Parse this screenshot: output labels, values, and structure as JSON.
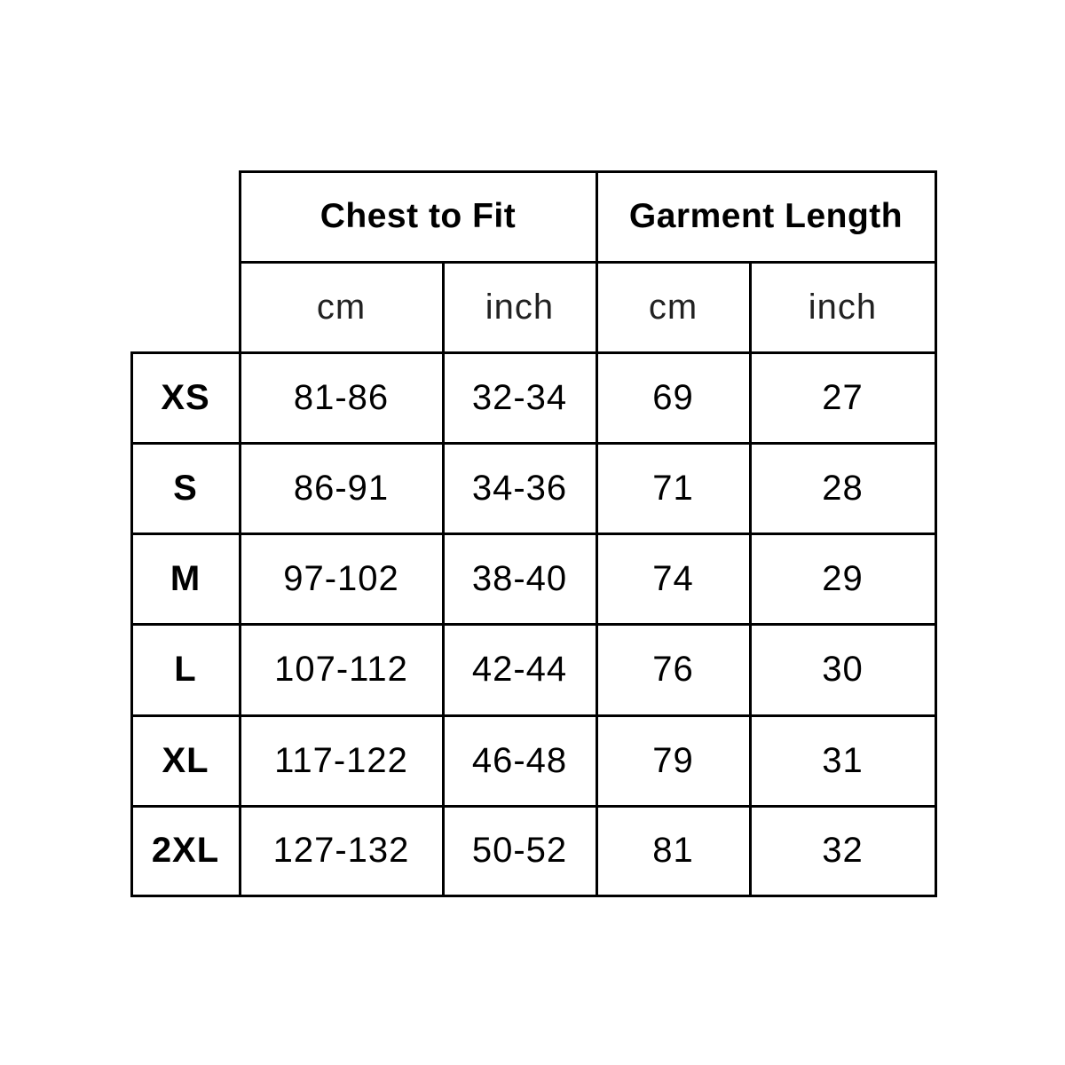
{
  "headers": {
    "chest": "Chest to Fit",
    "length": "Garment Length"
  },
  "units": [
    "cm",
    "inch",
    "cm",
    "inch"
  ],
  "rows": [
    {
      "size": "XS",
      "chest_cm": "81-86",
      "chest_in": "32-34",
      "length_cm": "69",
      "length_in": "27"
    },
    {
      "size": "S",
      "chest_cm": "86-91",
      "chest_in": "34-36",
      "length_cm": "71",
      "length_in": "28"
    },
    {
      "size": "M",
      "chest_cm": "97-102",
      "chest_in": "38-40",
      "length_cm": "74",
      "length_in": "29"
    },
    {
      "size": "L",
      "chest_cm": "107-112",
      "chest_in": "42-44",
      "length_cm": "76",
      "length_in": "30"
    },
    {
      "size": "XL",
      "chest_cm": "117-122",
      "chest_in": "46-48",
      "length_cm": "79",
      "length_in": "31"
    },
    {
      "size": "2XL",
      "chest_cm": "127-132",
      "chest_in": "50-52",
      "length_cm": "81",
      "length_in": "32"
    }
  ]
}
